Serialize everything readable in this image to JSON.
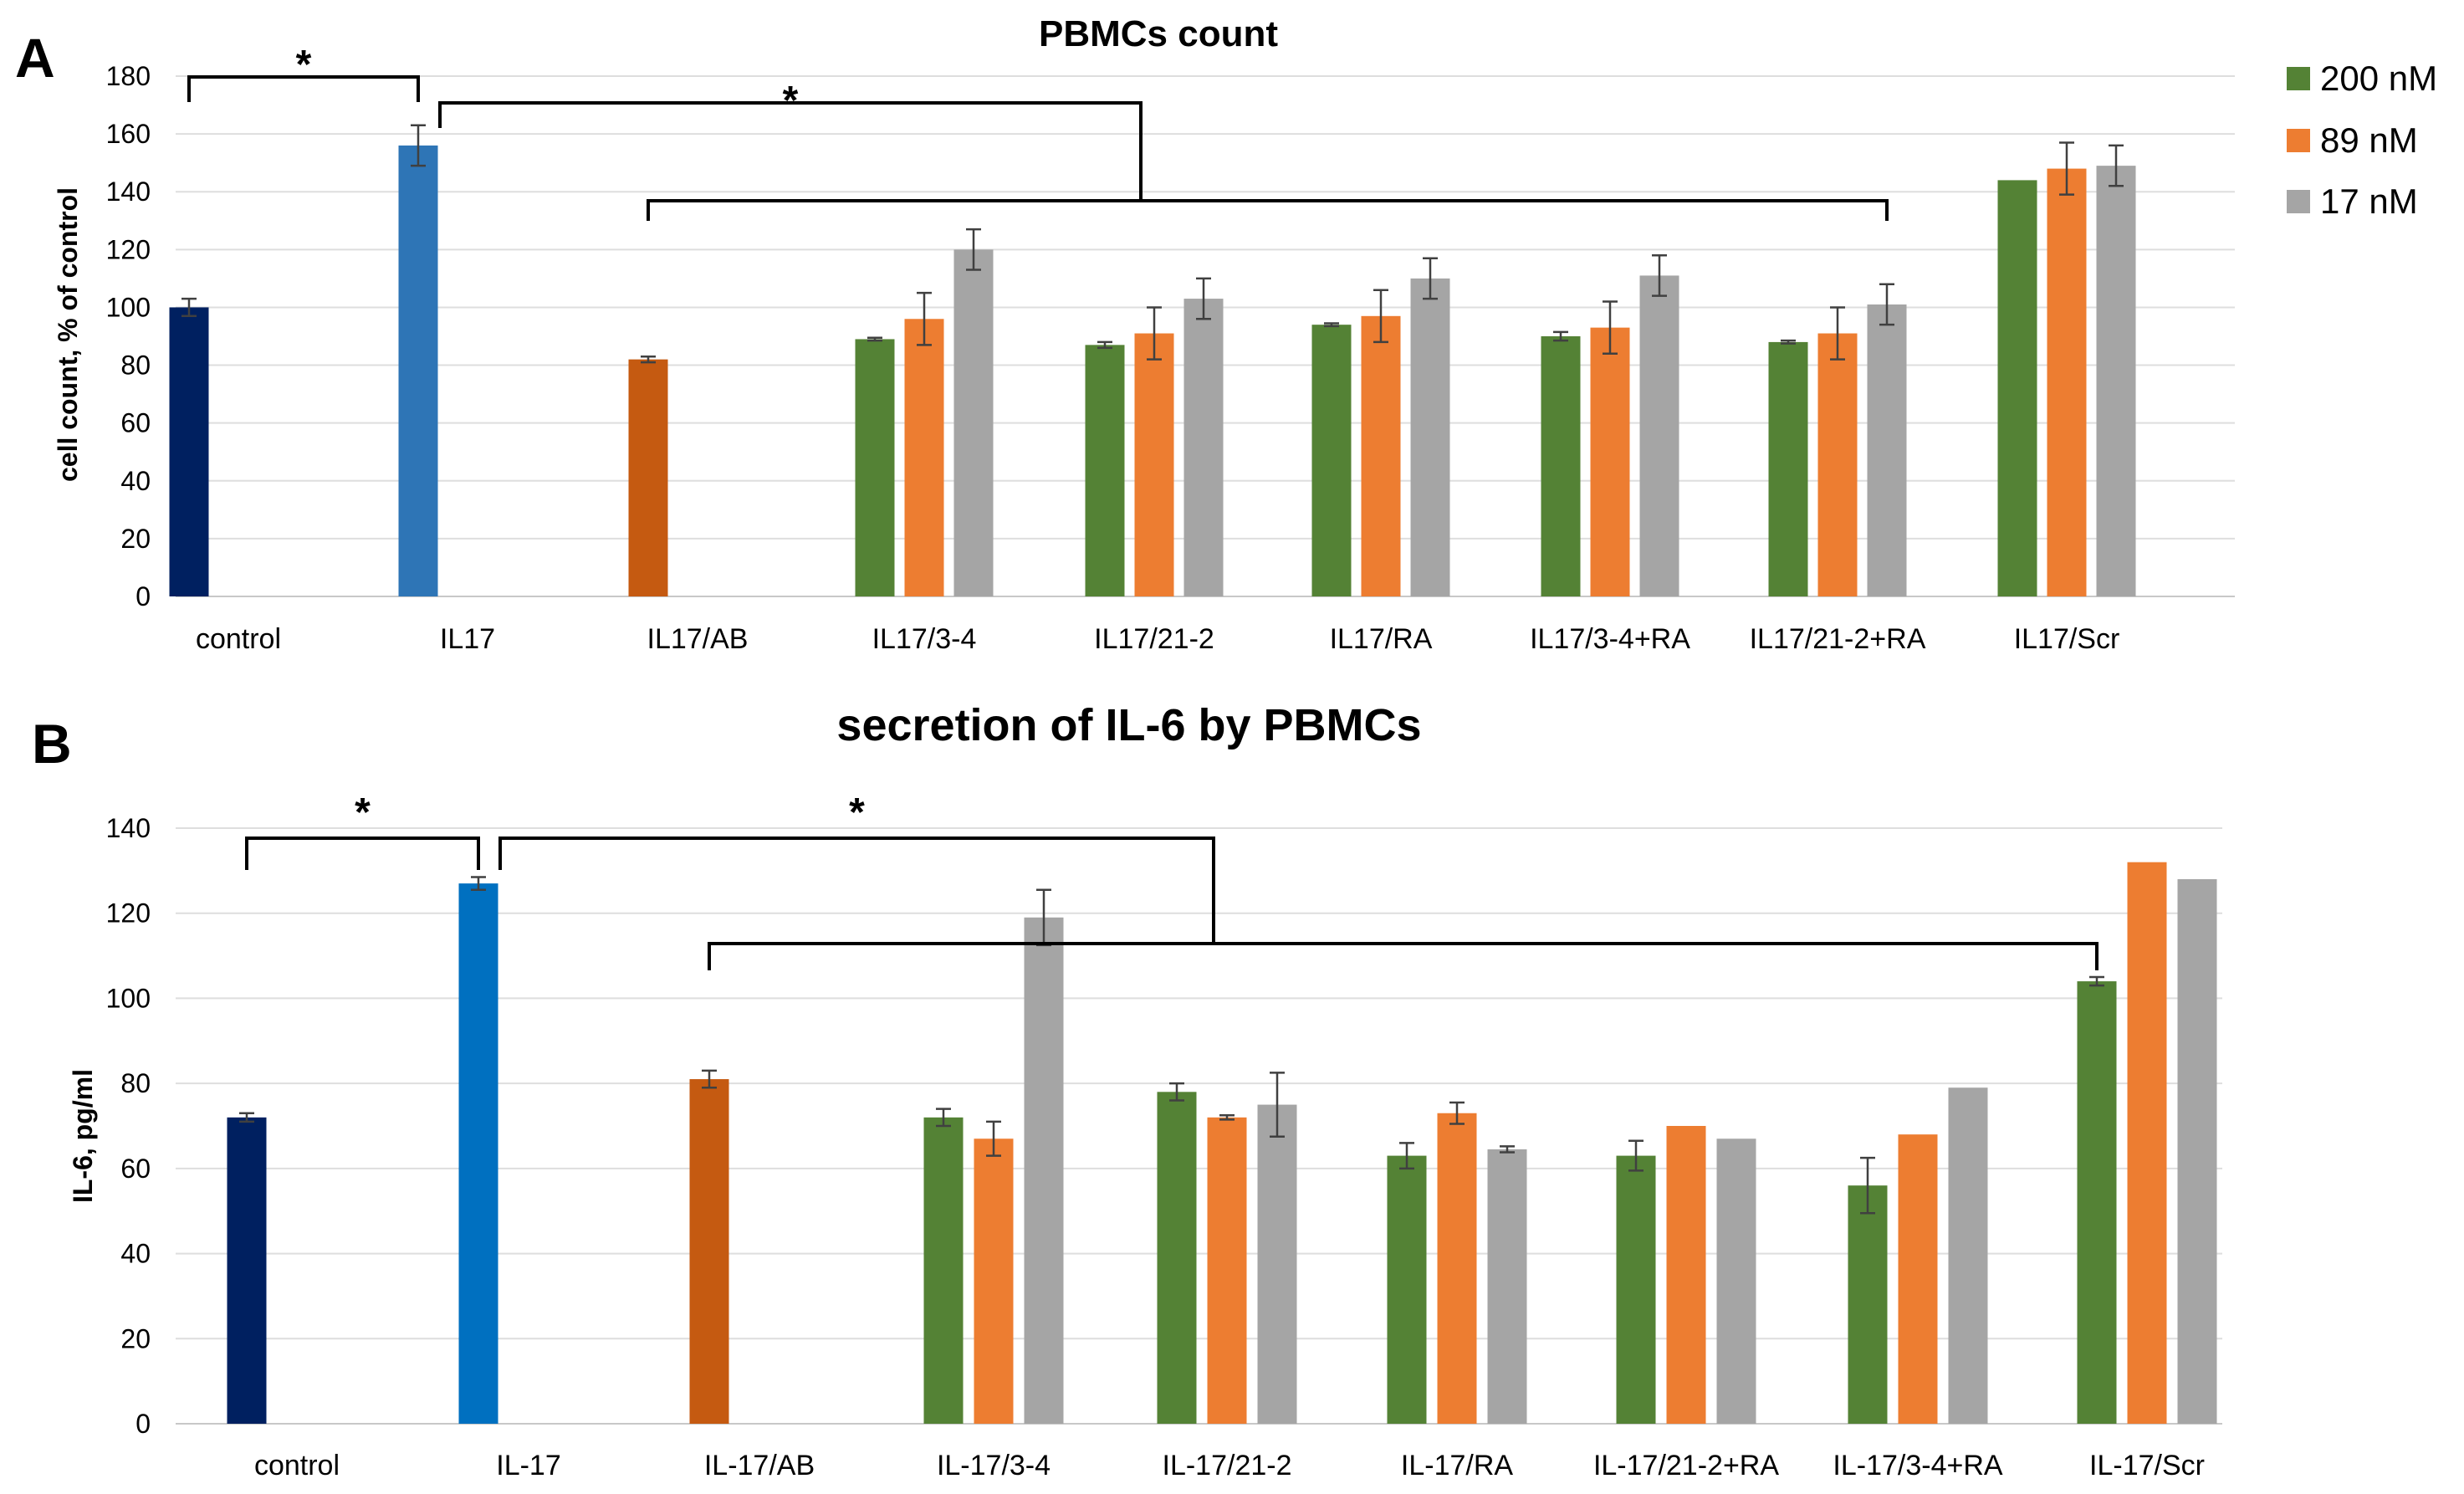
{
  "panel_a_letter": "A",
  "panel_b_letter": "B",
  "legend": [
    {
      "label": "200 nM",
      "color": "#548235"
    },
    {
      "label": "89 nM",
      "color": "#ED7D31"
    },
    {
      "label": "17 nM",
      "color": "#A5A5A5"
    }
  ],
  "colors": {
    "control": "#002060",
    "il17_a": "#2E75B6",
    "il17_b": "#0070C0",
    "ab": "#C55A11",
    "s200": "#548235",
    "s89": "#ED7D31",
    "s17": "#A5A5A5"
  },
  "chart_data": [
    {
      "type": "bar",
      "title": "PBMCs count",
      "ylabel": "cell count, % of control",
      "xlabel": "",
      "ylim": [
        0,
        180
      ],
      "yticks": [
        0,
        20,
        40,
        60,
        80,
        100,
        120,
        140,
        160,
        180
      ],
      "grid": true,
      "legend_position": "top-right",
      "categories": [
        "control",
        "IL17",
        "IL17/AB",
        "IL17/3-4",
        "IL17/21-2",
        "IL17/RA",
        "IL17/3-4+RA",
        "IL17/21-2+RA",
        "IL17/Scr"
      ],
      "single_bars": [
        {
          "category": "control",
          "value": 100,
          "error": 3,
          "color_key": "control"
        },
        {
          "category": "IL17",
          "value": 156,
          "error": 7,
          "color_key": "il17_a"
        },
        {
          "category": "IL17/AB",
          "value": 82,
          "error": 1,
          "color_key": "ab"
        }
      ],
      "series": [
        {
          "name": "200 nM",
          "color_key": "s200",
          "values": [
            null,
            null,
            null,
            89,
            87,
            94,
            90,
            88,
            144
          ],
          "errors": [
            null,
            null,
            null,
            0.5,
            1,
            0.5,
            1.5,
            0.5,
            0
          ]
        },
        {
          "name": "89 nM",
          "color_key": "s89",
          "values": [
            null,
            null,
            null,
            96,
            91,
            97,
            93,
            91,
            148
          ],
          "errors": [
            null,
            null,
            null,
            9,
            9,
            9,
            9,
            9,
            9
          ]
        },
        {
          "name": "17 nM",
          "color_key": "s17",
          "values": [
            null,
            null,
            null,
            120,
            103,
            110,
            111,
            101,
            149
          ],
          "errors": [
            null,
            null,
            null,
            7,
            7,
            7,
            7,
            7,
            7
          ]
        }
      ],
      "significance": [
        {
          "label": "*",
          "from": "control",
          "to": "IL17"
        },
        {
          "label": "*",
          "from": "IL17",
          "to": "IL17/21-2"
        }
      ],
      "brackets": [
        {
          "from": "IL17/AB",
          "to": "IL17/21-2+RA"
        }
      ]
    },
    {
      "type": "bar",
      "title": "secretion of IL-6 by PBMCs",
      "ylabel": "IL-6, pg/ml",
      "xlabel": "",
      "ylim": [
        0,
        140
      ],
      "yticks": [
        0,
        20,
        40,
        60,
        80,
        100,
        120,
        140
      ],
      "grid": true,
      "categories": [
        "control",
        "IL-17",
        "IL-17/AB",
        "IL-17/3-4",
        "IL-17/21-2",
        "IL-17/RA",
        "IL-17/21-2+RA",
        "IL-17/3-4+RA",
        "IL-17/Scr"
      ],
      "single_bars": [
        {
          "category": "control",
          "value": 72,
          "error": 1,
          "color_key": "control"
        },
        {
          "category": "IL-17",
          "value": 127,
          "error": 1.5,
          "color_key": "il17_b"
        },
        {
          "category": "IL-17/AB",
          "value": 81,
          "error": 2,
          "color_key": "ab"
        }
      ],
      "series": [
        {
          "name": "200 nM",
          "color_key": "s200",
          "values": [
            null,
            null,
            null,
            72,
            78,
            63,
            63,
            56,
            104
          ],
          "errors": [
            null,
            null,
            null,
            2,
            2,
            3,
            3.5,
            6.5,
            1
          ]
        },
        {
          "name": "89 nM",
          "color_key": "s89",
          "values": [
            null,
            null,
            null,
            67,
            72,
            73,
            70,
            68,
            132
          ],
          "errors": [
            null,
            null,
            null,
            4,
            0.5,
            2.5,
            0,
            0,
            0
          ]
        },
        {
          "name": "17 nM",
          "color_key": "s17",
          "values": [
            null,
            null,
            null,
            119,
            75,
            64.5,
            67,
            79,
            128
          ],
          "errors": [
            null,
            null,
            null,
            6.5,
            7.5,
            0.7,
            0,
            0,
            0
          ]
        }
      ],
      "significance": [
        {
          "label": "*",
          "from": "control",
          "to": "IL-17"
        },
        {
          "label": "*",
          "from": "IL-17",
          "to": "IL-17/21-2"
        }
      ],
      "brackets": [
        {
          "from": "IL-17/AB",
          "to": "IL-17/Scr"
        }
      ]
    }
  ]
}
